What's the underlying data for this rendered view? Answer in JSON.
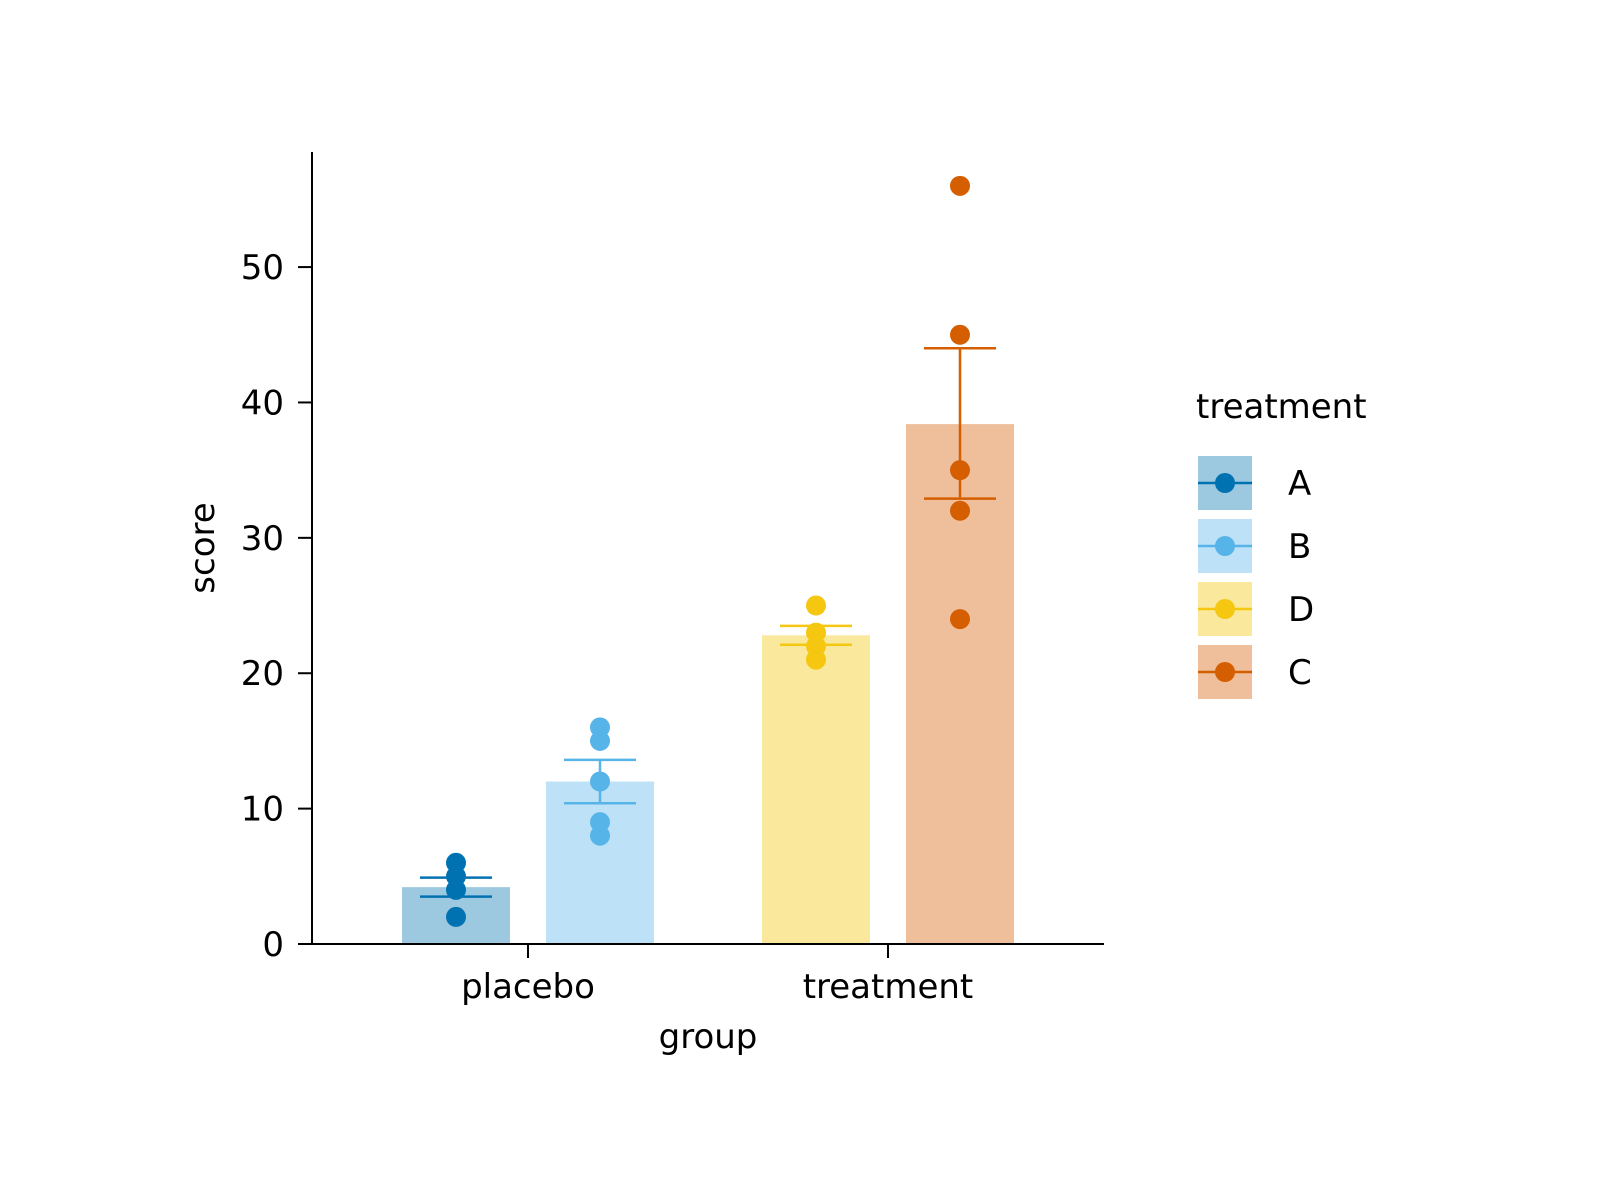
{
  "chart_data": {
    "type": "bar",
    "xlabel": "group",
    "ylabel": "score",
    "categories": [
      "placebo",
      "treatment"
    ],
    "ylim": [
      0,
      58.5
    ],
    "yticks": [
      0,
      10,
      20,
      30,
      40,
      50
    ],
    "grid": false,
    "legend": {
      "title": "treatment",
      "placement": "right",
      "entries": [
        "A",
        "B",
        "D",
        "C"
      ]
    },
    "series": [
      {
        "name": "A",
        "category": "placebo",
        "slot": 0,
        "mean": 4.2,
        "err_low": 3.5,
        "err_high": 4.9,
        "points": [
          2,
          4,
          5,
          6
        ],
        "color": "#0072B2",
        "fill": "#9CC8E0"
      },
      {
        "name": "B",
        "category": "placebo",
        "slot": 1,
        "mean": 12.0,
        "err_low": 10.4,
        "err_high": 13.6,
        "points": [
          8,
          9,
          12,
          15,
          16
        ],
        "color": "#56B4E9",
        "fill": "#BDE2F7"
      },
      {
        "name": "D",
        "category": "treatment",
        "slot": 0,
        "mean": 22.8,
        "err_low": 22.1,
        "err_high": 23.5,
        "points": [
          21,
          22,
          23,
          25
        ],
        "color": "#F5C710",
        "fill": "#FAE89C"
      },
      {
        "name": "C",
        "category": "treatment",
        "slot": 1,
        "mean": 38.4,
        "err_low": 32.9,
        "err_high": 44.0,
        "points": [
          24,
          32,
          35,
          45,
          56
        ],
        "color": "#D55E00",
        "fill": "#EFBF9B"
      }
    ]
  }
}
